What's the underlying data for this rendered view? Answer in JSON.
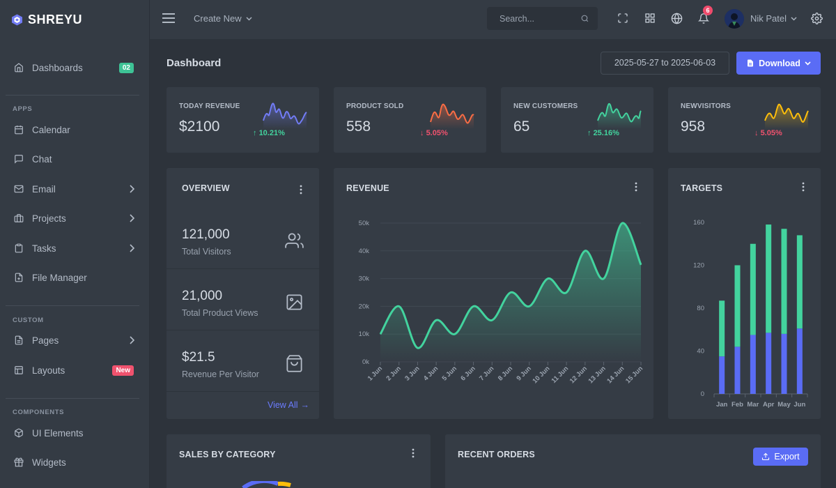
{
  "brand": {
    "name": "SHREYU"
  },
  "sidebar": {
    "dashboards": {
      "label": "Dashboards",
      "badge": "02",
      "badge_color": "#3ec396"
    },
    "sections": {
      "apps": "APPS",
      "custom": "CUSTOM",
      "components": "COMPONENTS"
    },
    "apps": [
      {
        "label": "Calendar",
        "icon": "calendar-icon"
      },
      {
        "label": "Chat",
        "icon": "chat-icon"
      },
      {
        "label": "Email",
        "icon": "mail-icon"
      },
      {
        "label": "Projects",
        "icon": "briefcase-icon"
      },
      {
        "label": "Tasks",
        "icon": "clipboard-icon"
      },
      {
        "label": "File Manager",
        "icon": "file-icon"
      }
    ],
    "custom": [
      {
        "label": "Pages",
        "icon": "file-text-icon"
      },
      {
        "label": "Layouts",
        "icon": "layout-icon",
        "badge": "New",
        "badge_color": "#f0526e"
      }
    ],
    "components": [
      {
        "label": "UI Elements",
        "icon": "package-icon"
      },
      {
        "label": "Widgets",
        "icon": "gift-icon"
      }
    ]
  },
  "topbar": {
    "create_new": "Create New",
    "search_placeholder": "Search...",
    "notification_count": "6",
    "user_name": "Nik Patel"
  },
  "page": {
    "title": "Dashboard",
    "date_range": "2025-05-27 to 2025-06-03",
    "download_label": "Download"
  },
  "stats": [
    {
      "label": "TODAY REVENUE",
      "value": "$2100",
      "change": "10.21%",
      "direction": "up",
      "color": "#727cf5"
    },
    {
      "label": "PRODUCT SOLD",
      "value": "558",
      "change": "5.05%",
      "direction": "down",
      "color": "#fa6d45"
    },
    {
      "label": "NEW CUSTOMERS",
      "value": "65",
      "change": "25.16%",
      "direction": "up",
      "color": "#43d39e"
    },
    {
      "label": "NEWVISITORS",
      "value": "958",
      "change": "5.05%",
      "direction": "down",
      "color": "#ffbe0b"
    }
  ],
  "overview": {
    "title": "OVERVIEW",
    "rows": [
      {
        "value": "121,000",
        "label": "Total Visitors",
        "icon": "users-icon"
      },
      {
        "value": "21,000",
        "label": "Total Product Views",
        "icon": "image-icon"
      },
      {
        "value": "$21.5",
        "label": "Revenue Per Visitor",
        "icon": "shopping-bag-icon"
      }
    ],
    "view_all": "View All"
  },
  "revenue": {
    "title": "REVENUE"
  },
  "targets": {
    "title": "TARGETS"
  },
  "sales": {
    "title": "SALES BY CATEGORY"
  },
  "orders": {
    "title": "RECENT ORDERS",
    "export_label": "Export"
  },
  "colors": {
    "accent": "#5a6cf5",
    "success": "#3ec396",
    "danger": "#f0526e",
    "green_line": "#43d39e",
    "blue_bar": "#5a6cf5"
  },
  "chart_data": [
    {
      "type": "area",
      "title": "REVENUE",
      "categories": [
        "1 Jun",
        "2 Jun",
        "3 Jun",
        "4 Jun",
        "5 Jun",
        "6 Jun",
        "7 Jun",
        "8 Jun",
        "9 Jun",
        "10 Jun",
        "11 Jun",
        "12 Jun",
        "13 Jun",
        "14 Jun",
        "15 Jun"
      ],
      "values": [
        10000,
        20000,
        5000,
        15000,
        10000,
        20000,
        15000,
        25000,
        20000,
        30000,
        25000,
        40000,
        30000,
        50000,
        35000
      ],
      "ylim": [
        0,
        50000
      ],
      "yticks": [
        "0k",
        "10k",
        "20k",
        "30k",
        "40k",
        "50k"
      ],
      "grid": true
    },
    {
      "type": "bar",
      "stacked": true,
      "title": "TARGETS",
      "categories": [
        "Jan",
        "Feb",
        "Mar",
        "Apr",
        "May",
        "Jun"
      ],
      "series": [
        {
          "values": [
            35,
            44,
            55,
            57,
            56,
            61
          ]
        },
        {
          "values": [
            52,
            76,
            85,
            101,
            98,
            87
          ]
        }
      ],
      "ylim": [
        0,
        160
      ],
      "yticks": [
        "0",
        "40",
        "80",
        "120",
        "160"
      ]
    }
  ]
}
